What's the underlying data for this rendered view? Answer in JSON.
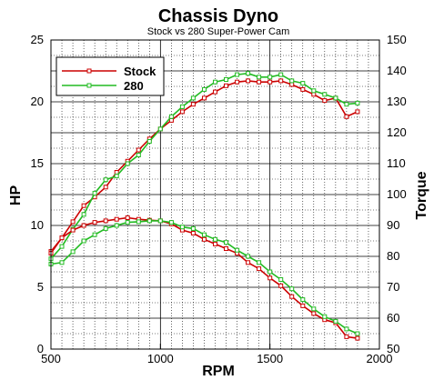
{
  "chart_data": {
    "type": "line",
    "title": "Chassis Dyno",
    "subtitle": "Stock vs 280 Super-Power Cam",
    "xlabel": "RPM",
    "ylabel_left": "HP",
    "ylabel_right": "Torque",
    "xlim": [
      500,
      2000
    ],
    "ylim_left": [
      0,
      25
    ],
    "ylim_right": [
      50,
      150
    ],
    "x_ticks": [
      "500",
      "1000",
      "1500",
      "2000"
    ],
    "y_left_ticks": [
      "0",
      "5",
      "10",
      "15",
      "20",
      "25"
    ],
    "y_right_ticks": [
      "50",
      "60",
      "70",
      "80",
      "90",
      "100",
      "110",
      "120",
      "130",
      "140",
      "150"
    ],
    "grid": true,
    "legend": "top-left",
    "colors": {
      "Stock": "#cc0000",
      "280": "#22bb22"
    },
    "series": [
      {
        "name": "Stock",
        "axis": "left",
        "x": [
          500,
          550,
          600,
          650,
          700,
          750,
          800,
          850,
          900,
          950,
          1000,
          1050,
          1100,
          1150,
          1200,
          1250,
          1300,
          1350,
          1400,
          1450,
          1500,
          1550,
          1600,
          1650,
          1700,
          1750,
          1800,
          1850,
          1900
        ],
        "values": [
          7.9,
          9.0,
          10.3,
          11.6,
          12.3,
          13.1,
          14.3,
          15.2,
          16.1,
          17.0,
          17.8,
          18.5,
          19.2,
          19.8,
          20.3,
          20.8,
          21.3,
          21.6,
          21.7,
          21.6,
          21.6,
          21.7,
          21.4,
          21.0,
          20.6,
          20.1,
          20.3,
          18.8,
          19.2
        ]
      },
      {
        "name": "280",
        "axis": "left",
        "x": [
          500,
          550,
          600,
          650,
          700,
          750,
          800,
          850,
          900,
          950,
          1000,
          1050,
          1100,
          1150,
          1200,
          1250,
          1300,
          1350,
          1400,
          1450,
          1500,
          1550,
          1600,
          1650,
          1700,
          1750,
          1800,
          1850,
          1900
        ],
        "values": [
          7.3,
          8.3,
          9.7,
          10.9,
          12.6,
          13.7,
          14.0,
          15.0,
          15.7,
          16.8,
          17.8,
          18.8,
          19.6,
          20.3,
          21.0,
          21.6,
          21.8,
          22.2,
          22.3,
          22.0,
          22.0,
          22.2,
          21.7,
          21.5,
          20.9,
          20.6,
          20.3,
          19.8,
          19.9
        ]
      },
      {
        "name": "Stock",
        "axis": "right",
        "x": [
          500,
          550,
          600,
          650,
          700,
          750,
          800,
          850,
          900,
          950,
          1000,
          1050,
          1100,
          1150,
          1200,
          1250,
          1300,
          1350,
          1400,
          1450,
          1500,
          1550,
          1600,
          1650,
          1700,
          1750,
          1800,
          1850,
          1900
        ],
        "values": [
          81.0,
          86.0,
          88.5,
          90.0,
          91.0,
          91.5,
          92.0,
          92.5,
          92.0,
          91.7,
          91.5,
          90.5,
          88.5,
          87.5,
          85.5,
          84.0,
          82.5,
          81.0,
          78.0,
          76.0,
          73.0,
          70.5,
          67.0,
          64.0,
          61.5,
          59.5,
          58.5,
          54.0,
          53.5
        ]
      },
      {
        "name": "280",
        "axis": "right",
        "x": [
          500,
          550,
          600,
          650,
          700,
          750,
          800,
          850,
          900,
          950,
          1000,
          1050,
          1100,
          1150,
          1200,
          1250,
          1300,
          1350,
          1400,
          1450,
          1500,
          1550,
          1600,
          1650,
          1700,
          1750,
          1800,
          1850,
          1900
        ],
        "values": [
          77.5,
          78.0,
          81.5,
          85.0,
          87.0,
          89.0,
          90.0,
          91.0,
          91.2,
          91.5,
          91.5,
          91.0,
          89.5,
          89.0,
          87.0,
          85.5,
          84.5,
          82.0,
          80.0,
          78.0,
          75.0,
          72.5,
          69.5,
          66.0,
          63.0,
          60.5,
          59.0,
          56.5,
          55.0
        ]
      }
    ]
  }
}
